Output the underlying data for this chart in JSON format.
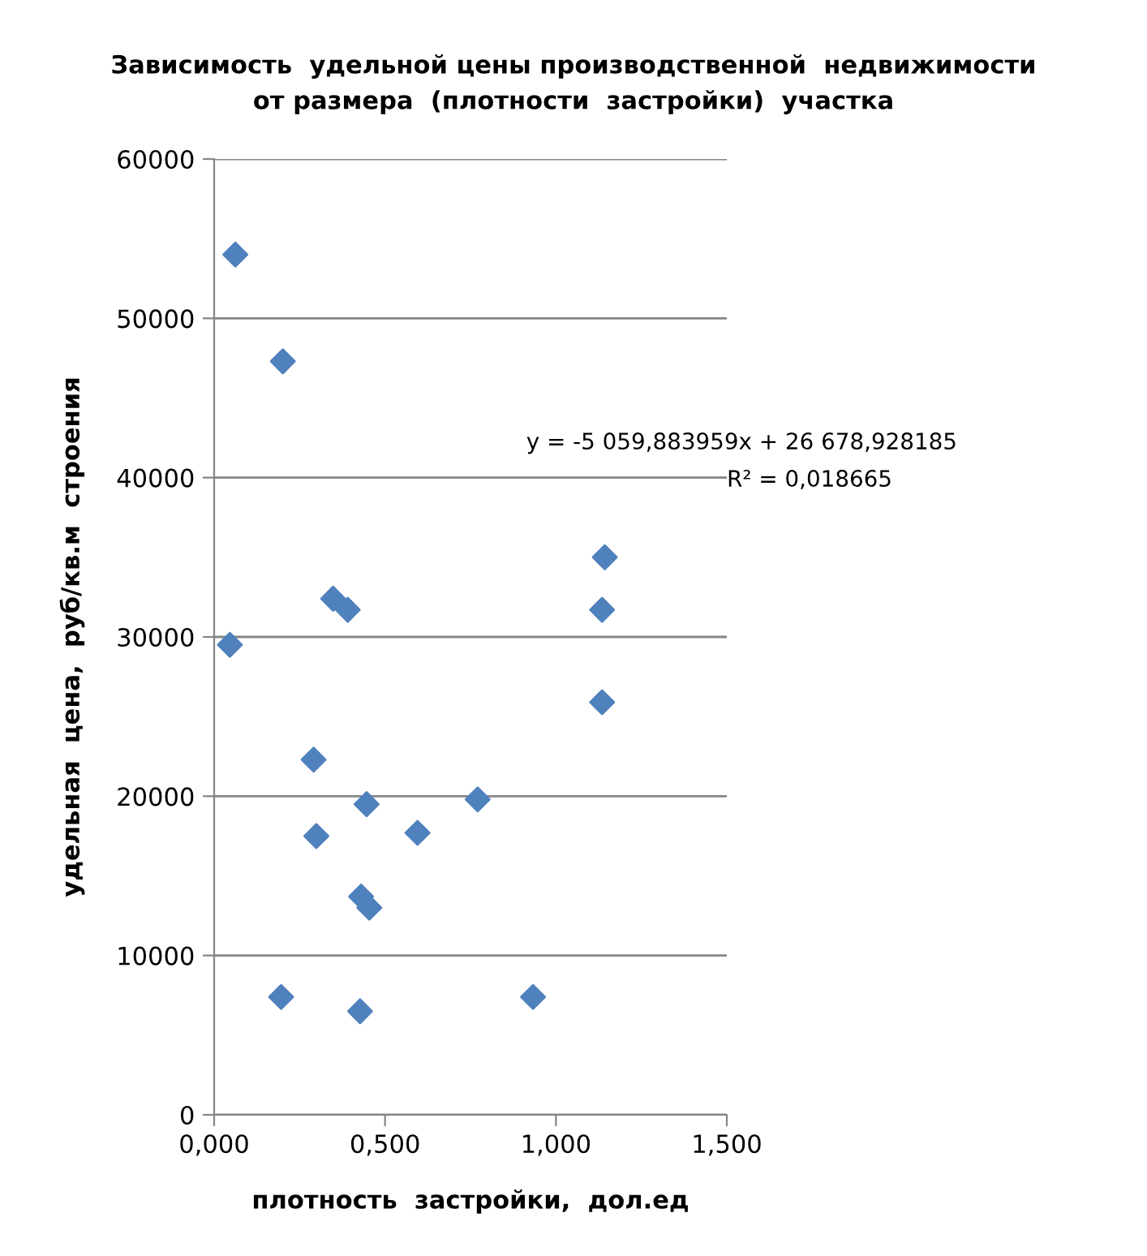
{
  "chart_data": {
    "type": "scatter",
    "title": "Зависимость  удельной цены производственной  недвижимости\nот размера  (плотности  застройки)  участка",
    "xlabel": "плотность  застройки,  дол.ед",
    "ylabel": "удельная  цена,  руб/кв.м  строения",
    "annotations": [
      "y = -5 059,883959x + 26 678,928185",
      "R² = 0,018665"
    ],
    "x": [
      0.062,
      0.201,
      0.348,
      0.391,
      1.143,
      1.135,
      0.046,
      0.291,
      0.446,
      0.771,
      0.299,
      0.595,
      0.43,
      0.454,
      0.196,
      0.427,
      0.933,
      1.135
    ],
    "series": [
      {
        "color": "#4f81bd",
        "values": [
          54000,
          47300,
          32400,
          31700,
          35000,
          31700,
          29500,
          22300,
          19500,
          19800,
          17500,
          17700,
          13700,
          13000,
          7400,
          6500,
          7400,
          25900
        ]
      }
    ],
    "xlim": [
      0,
      1.5
    ],
    "ylim": [
      0,
      60000
    ],
    "xticks": [
      {
        "value": 0,
        "label": "0,000"
      },
      {
        "value": 0.5,
        "label": "0,500"
      },
      {
        "value": 1.0,
        "label": "1,000"
      },
      {
        "value": 1.5,
        "label": "1,500"
      }
    ],
    "yticks": [
      0,
      10000,
      20000,
      30000,
      40000,
      50000,
      60000
    ],
    "grid": "y",
    "marker": "diamond",
    "legend": false
  }
}
